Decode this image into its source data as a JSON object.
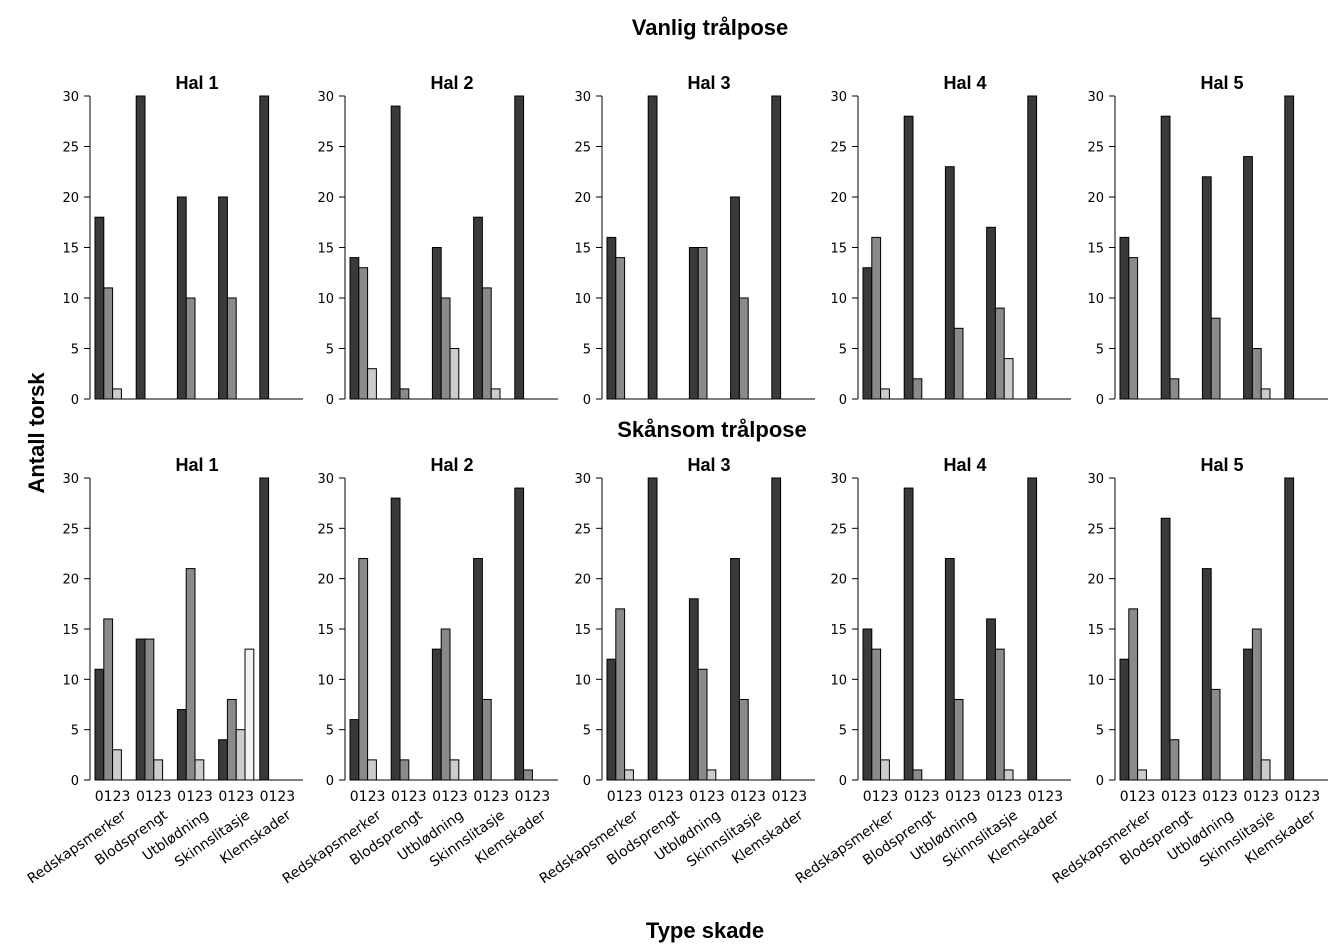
{
  "figure": {
    "xlabel": "Type skade",
    "ylabel": "Antall torsk"
  },
  "chart_data": [
    {
      "type": "bar",
      "group": "Vanlig trålpose",
      "title": "Hal 1",
      "categories": [
        "Redskapsmerker",
        "Blodsprengt",
        "Utblødning",
        "Skinnslitasje",
        "Klemskader"
      ],
      "severity_codes": [
        "0",
        "1",
        "2",
        "3"
      ],
      "series": [
        {
          "values": [
            18,
            30,
            20,
            20,
            30
          ]
        },
        {
          "values": [
            11,
            0,
            10,
            10,
            0
          ]
        },
        {
          "values": [
            1,
            0,
            0,
            0,
            0
          ]
        },
        {
          "values": [
            0,
            0,
            0,
            0,
            0
          ]
        }
      ],
      "ylim": [
        0,
        30
      ],
      "yticks": [
        0,
        5,
        10,
        15,
        20,
        25,
        30
      ]
    },
    {
      "type": "bar",
      "group": "Vanlig trålpose",
      "title": "Hal 2",
      "categories": [
        "Redskapsmerker",
        "Blodsprengt",
        "Utblødning",
        "Skinnslitasje",
        "Klemskader"
      ],
      "severity_codes": [
        "0",
        "1",
        "2",
        "3"
      ],
      "series": [
        {
          "values": [
            14,
            29,
            15,
            18,
            30
          ]
        },
        {
          "values": [
            13,
            1,
            10,
            11,
            0
          ]
        },
        {
          "values": [
            3,
            0,
            5,
            1,
            0
          ]
        },
        {
          "values": [
            0,
            0,
            0,
            0,
            0
          ]
        }
      ],
      "ylim": [
        0,
        30
      ],
      "yticks": [
        0,
        5,
        10,
        15,
        20,
        25,
        30
      ]
    },
    {
      "type": "bar",
      "group": "Vanlig trålpose",
      "title": "Hal 3",
      "categories": [
        "Redskapsmerker",
        "Blodsprengt",
        "Utblødning",
        "Skinnslitasje",
        "Klemskader"
      ],
      "severity_codes": [
        "0",
        "1",
        "2",
        "3"
      ],
      "series": [
        {
          "values": [
            16,
            30,
            15,
            20,
            30
          ]
        },
        {
          "values": [
            14,
            0,
            15,
            10,
            0
          ]
        },
        {
          "values": [
            0,
            0,
            0,
            0,
            0
          ]
        },
        {
          "values": [
            0,
            0,
            0,
            0,
            0
          ]
        }
      ],
      "ylim": [
        0,
        30
      ],
      "yticks": [
        0,
        5,
        10,
        15,
        20,
        25,
        30
      ]
    },
    {
      "type": "bar",
      "group": "Vanlig trålpose",
      "title": "Hal 4",
      "categories": [
        "Redskapsmerker",
        "Blodsprengt",
        "Utblødning",
        "Skinnslitasje",
        "Klemskader"
      ],
      "severity_codes": [
        "0",
        "1",
        "2",
        "3"
      ],
      "series": [
        {
          "values": [
            13,
            28,
            23,
            17,
            30
          ]
        },
        {
          "values": [
            16,
            2,
            7,
            9,
            0
          ]
        },
        {
          "values": [
            1,
            0,
            0,
            4,
            0
          ]
        },
        {
          "values": [
            0,
            0,
            0,
            0,
            0
          ]
        }
      ],
      "ylim": [
        0,
        30
      ],
      "yticks": [
        0,
        5,
        10,
        15,
        20,
        25,
        30
      ]
    },
    {
      "type": "bar",
      "group": "Vanlig trålpose",
      "title": "Hal 5",
      "categories": [
        "Redskapsmerker",
        "Blodsprengt",
        "Utblødning",
        "Skinnslitasje",
        "Klemskader"
      ],
      "severity_codes": [
        "0",
        "1",
        "2",
        "3"
      ],
      "series": [
        {
          "values": [
            16,
            28,
            22,
            24,
            30
          ]
        },
        {
          "values": [
            14,
            2,
            8,
            5,
            0
          ]
        },
        {
          "values": [
            0,
            0,
            0,
            1,
            0
          ]
        },
        {
          "values": [
            0,
            0,
            0,
            0,
            0
          ]
        }
      ],
      "ylim": [
        0,
        30
      ],
      "yticks": [
        0,
        5,
        10,
        15,
        20,
        25,
        30
      ]
    },
    {
      "type": "bar",
      "group": "Skånsom trålpose",
      "title": "Hal 1",
      "categories": [
        "Redskapsmerker",
        "Blodsprengt",
        "Utblødning",
        "Skinnslitasje",
        "Klemskader"
      ],
      "severity_codes": [
        "0",
        "1",
        "2",
        "3"
      ],
      "series": [
        {
          "values": [
            11,
            14,
            7,
            4,
            30
          ]
        },
        {
          "values": [
            16,
            14,
            21,
            8,
            0
          ]
        },
        {
          "values": [
            3,
            2,
            2,
            5,
            0
          ]
        },
        {
          "values": [
            0,
            0,
            0,
            13,
            0
          ]
        }
      ],
      "ylim": [
        0,
        30
      ],
      "yticks": [
        0,
        5,
        10,
        15,
        20,
        25,
        30
      ]
    },
    {
      "type": "bar",
      "group": "Skånsom trålpose",
      "title": "Hal 2",
      "categories": [
        "Redskapsmerker",
        "Blodsprengt",
        "Utblødning",
        "Skinnslitasje",
        "Klemskader"
      ],
      "severity_codes": [
        "0",
        "1",
        "2",
        "3"
      ],
      "series": [
        {
          "values": [
            6,
            28,
            13,
            22,
            29
          ]
        },
        {
          "values": [
            22,
            2,
            15,
            8,
            1
          ]
        },
        {
          "values": [
            2,
            0,
            2,
            0,
            0
          ]
        },
        {
          "values": [
            0,
            0,
            0,
            0,
            0
          ]
        }
      ],
      "ylim": [
        0,
        30
      ],
      "yticks": [
        0,
        5,
        10,
        15,
        20,
        25,
        30
      ]
    },
    {
      "type": "bar",
      "group": "Skånsom trålpose",
      "title": "Hal 3",
      "categories": [
        "Redskapsmerker",
        "Blodsprengt",
        "Utblødning",
        "Skinnslitasje",
        "Klemskader"
      ],
      "severity_codes": [
        "0",
        "1",
        "2",
        "3"
      ],
      "series": [
        {
          "values": [
            12,
            30,
            18,
            22,
            30
          ]
        },
        {
          "values": [
            17,
            0,
            11,
            8,
            0
          ]
        },
        {
          "values": [
            1,
            0,
            1,
            0,
            0
          ]
        },
        {
          "values": [
            0,
            0,
            0,
            0,
            0
          ]
        }
      ],
      "ylim": [
        0,
        30
      ],
      "yticks": [
        0,
        5,
        10,
        15,
        20,
        25,
        30
      ]
    },
    {
      "type": "bar",
      "group": "Skånsom trålpose",
      "title": "Hal 4",
      "categories": [
        "Redskapsmerker",
        "Blodsprengt",
        "Utblødning",
        "Skinnslitasje",
        "Klemskader"
      ],
      "severity_codes": [
        "0",
        "1",
        "2",
        "3"
      ],
      "series": [
        {
          "values": [
            15,
            29,
            22,
            16,
            30
          ]
        },
        {
          "values": [
            13,
            1,
            8,
            13,
            0
          ]
        },
        {
          "values": [
            2,
            0,
            0,
            1,
            0
          ]
        },
        {
          "values": [
            0,
            0,
            0,
            0,
            0
          ]
        }
      ],
      "ylim": [
        0,
        30
      ],
      "yticks": [
        0,
        5,
        10,
        15,
        20,
        25,
        30
      ]
    },
    {
      "type": "bar",
      "group": "Skånsom trålpose",
      "title": "Hal 5",
      "categories": [
        "Redskapsmerker",
        "Blodsprengt",
        "Utblødning",
        "Skinnslitasje",
        "Klemskader"
      ],
      "severity_codes": [
        "0",
        "1",
        "2",
        "3"
      ],
      "series": [
        {
          "values": [
            12,
            26,
            21,
            13,
            30
          ]
        },
        {
          "values": [
            17,
            4,
            9,
            15,
            0
          ]
        },
        {
          "values": [
            1,
            0,
            0,
            2,
            0
          ]
        },
        {
          "values": [
            0,
            0,
            0,
            0,
            0
          ]
        }
      ],
      "ylim": [
        0,
        30
      ],
      "yticks": [
        0,
        5,
        10,
        15,
        20,
        25,
        30
      ]
    }
  ],
  "colors": {
    "severity": [
      "#3a3a3a",
      "#8a8a8a",
      "#cccccc",
      "#f2f2f2"
    ],
    "outline": "#000000",
    "axis": "#000000"
  }
}
